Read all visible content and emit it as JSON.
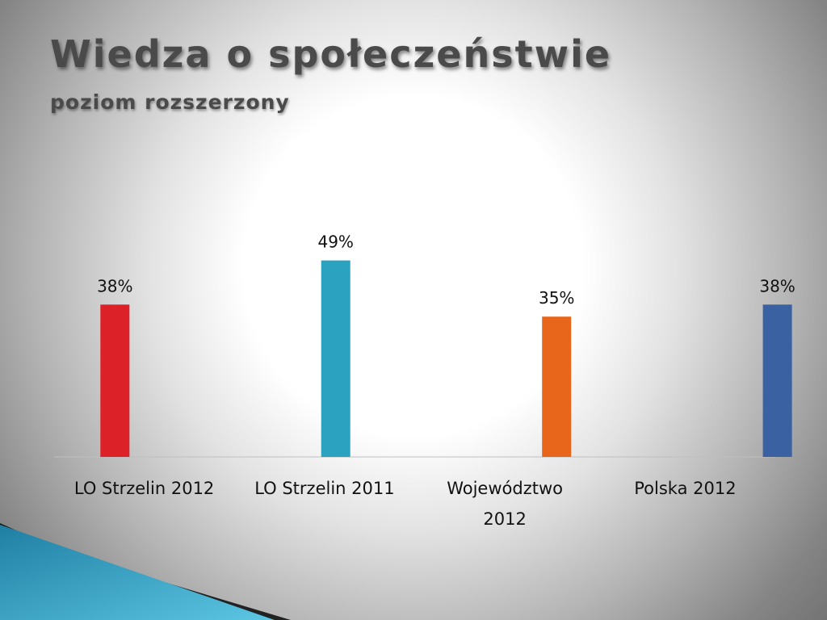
{
  "slide": {
    "title": "Wiedza o społeczeństwie",
    "subtitle": "poziom rozszerzony"
  },
  "chart_data": {
    "type": "bar",
    "title": "",
    "xlabel": "",
    "ylabel": "",
    "ylim": [
      0,
      60
    ],
    "grid": false,
    "legend": "none",
    "categories": [
      "LO Strzelin 2012",
      "LO Strzelin 2011",
      "Województwo 2012",
      "Polska 2012"
    ],
    "series": [
      {
        "values": [
          38,
          null,
          null,
          null
        ],
        "labels": [
          "38%",
          "",
          "",
          ""
        ],
        "color": "#dc2228"
      },
      {
        "values": [
          null,
          49,
          null,
          null
        ],
        "labels": [
          "",
          "49%",
          "",
          ""
        ],
        "color": "#2aa2c0"
      },
      {
        "values": [
          null,
          null,
          35,
          null
        ],
        "labels": [
          "",
          "",
          "35%",
          ""
        ],
        "color": "#e8651c"
      },
      {
        "values": [
          null,
          null,
          null,
          38
        ],
        "labels": [
          "",
          "",
          "",
          "38%"
        ],
        "color": "#3a62a2"
      }
    ]
  }
}
